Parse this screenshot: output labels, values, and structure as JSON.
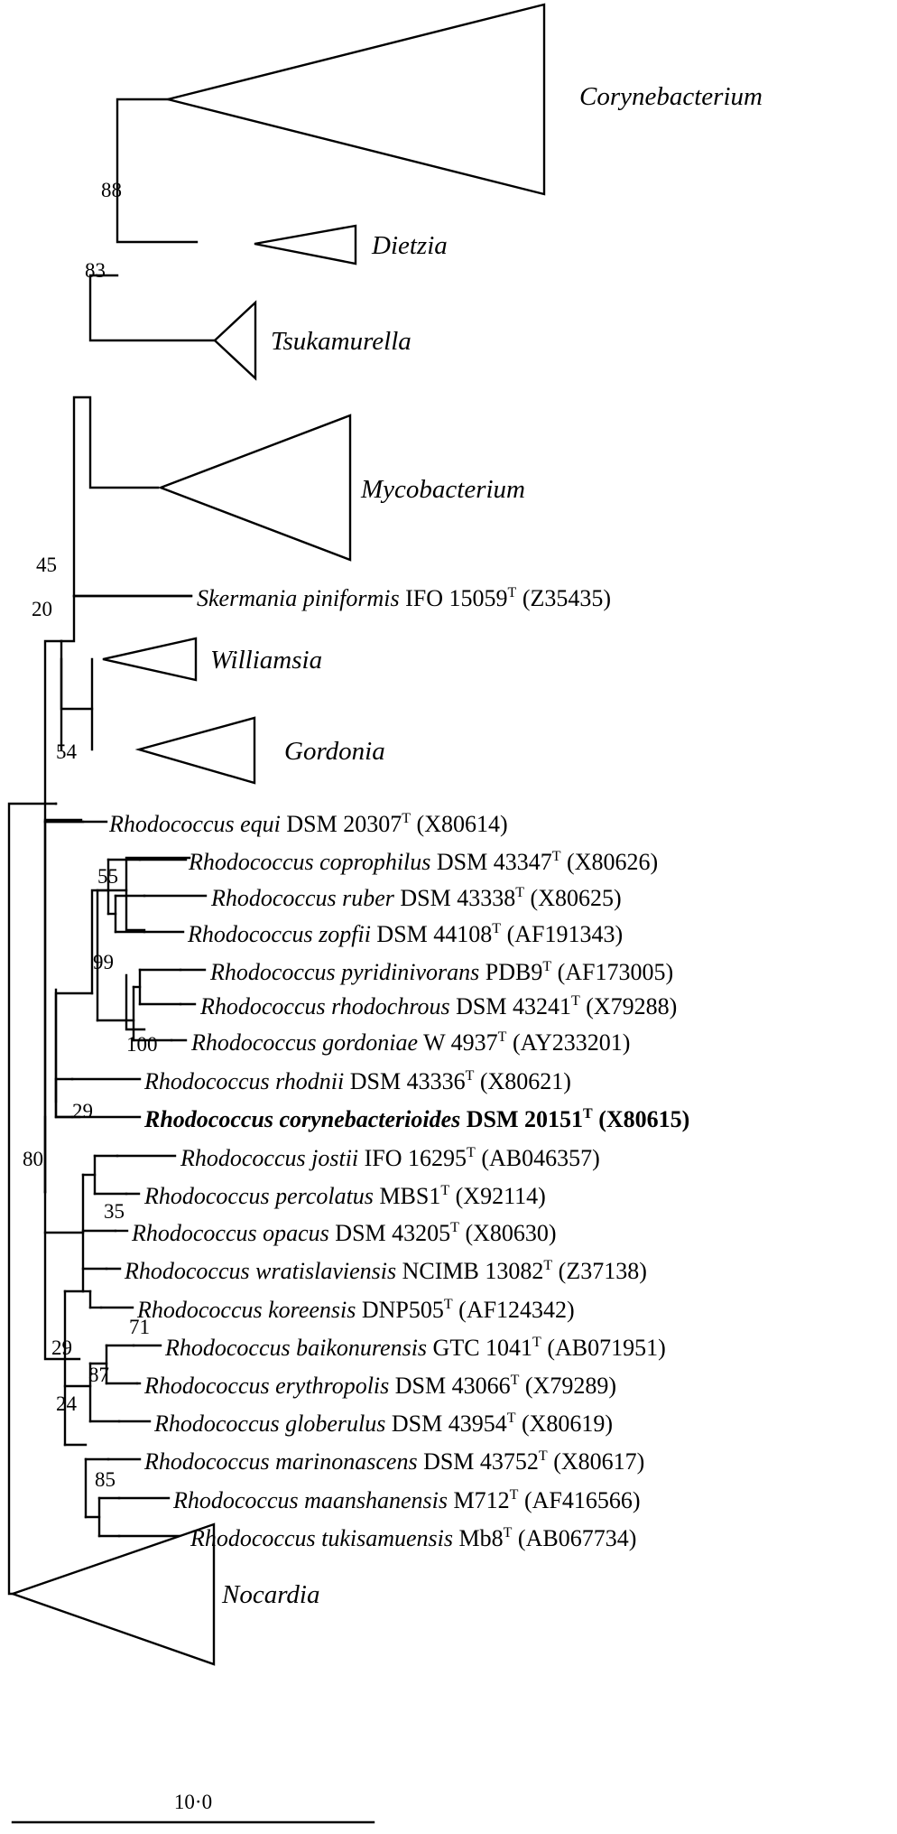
{
  "collapsed_clades": [
    {
      "label": "Corynebacterium"
    },
    {
      "label": "Dietzia"
    },
    {
      "label": "Tsukamurella"
    },
    {
      "label": "Mycobacterium"
    },
    {
      "label": "Williamsia"
    },
    {
      "label": "Gordonia"
    },
    {
      "label": "Nocardia"
    }
  ],
  "taxa": [
    {
      "genus": "Skermania",
      "species": "piniformis",
      "strain": "IFO 15059",
      "type_mark": "T",
      "accession": "(Z35435)"
    },
    {
      "genus": "Rhodococcus",
      "species": "equi",
      "strain": "DSM 20307",
      "type_mark": "T",
      "accession": "(X80614)"
    },
    {
      "genus": "Rhodococcus",
      "species": "coprophilus",
      "strain": "DSM 43347",
      "type_mark": "T",
      "accession": "(X80626)"
    },
    {
      "genus": "Rhodococcus",
      "species": "ruber",
      "strain": "DSM 43338",
      "type_mark": "T",
      "accession": "(X80625)"
    },
    {
      "genus": "Rhodococcus",
      "species": "zopfii",
      "strain": "DSM 44108",
      "type_mark": "T",
      "accession": "(AF191343)"
    },
    {
      "genus": "Rhodococcus",
      "species": "pyridinivorans",
      "strain": "PDB9",
      "type_mark": "T",
      "accession": "(AF173005)"
    },
    {
      "genus": "Rhodococcus",
      "species": "rhodochrous",
      "strain": "DSM 43241",
      "type_mark": "T",
      "accession": "(X79288)"
    },
    {
      "genus": "Rhodococcus",
      "species": "gordoniae",
      "strain": "W 4937",
      "type_mark": "T",
      "accession": "(AY233201)"
    },
    {
      "genus": "Rhodococcus",
      "species": "rhodnii",
      "strain": "DSM 43336",
      "type_mark": "T",
      "accession": "(X80621)"
    },
    {
      "genus": "Rhodococcus",
      "species": "corynebacterioides",
      "strain": "DSM 20151",
      "type_mark": "T",
      "accession": "(X80615)",
      "bold": true
    },
    {
      "genus": "Rhodococcus",
      "species": "jostii",
      "strain": "IFO 16295",
      "type_mark": "T",
      "accession": "(AB046357)"
    },
    {
      "genus": "Rhodococcus",
      "species": "percolatus",
      "strain": "MBS1",
      "type_mark": "T",
      "accession": "(X92114)"
    },
    {
      "genus": "Rhodococcus",
      "species": "opacus",
      "strain": "DSM 43205",
      "type_mark": "T",
      "accession": "(X80630)"
    },
    {
      "genus": "Rhodococcus",
      "species": "wratislaviensis",
      "strain": "NCIMB 13082",
      "type_mark": "T",
      "accession": "(Z37138)"
    },
    {
      "genus": "Rhodococcus",
      "species": "koreensis",
      "strain": "DNP505",
      "type_mark": "T",
      "accession": "(AF124342)"
    },
    {
      "genus": "Rhodococcus",
      "species": "baikonurensis",
      "strain": "GTC 1041",
      "type_mark": "T",
      "accession": "(AB071951)"
    },
    {
      "genus": "Rhodococcus",
      "species": "erythropolis",
      "strain": "DSM 43066",
      "type_mark": "T",
      "accession": "(X79289)"
    },
    {
      "genus": "Rhodococcus",
      "species": "globerulus",
      "strain": "DSM 43954",
      "type_mark": "T",
      "accession": "(X80619)"
    },
    {
      "genus": "Rhodococcus",
      "species": "marinonascens",
      "strain": "DSM 43752",
      "type_mark": "T",
      "accession": "(X80617)"
    },
    {
      "genus": "Rhodococcus",
      "species": "maanshanensis",
      "strain": "M712",
      "type_mark": "T",
      "accession": "(AF416566)"
    },
    {
      "genus": "Rhodococcus",
      "species": "tukisamuensis",
      "strain": "Mb8",
      "type_mark": "T",
      "accession": "(AB067734)"
    }
  ],
  "bootstrap_values": [
    "88",
    "83",
    "45",
    "20",
    "54",
    "55",
    "99",
    "100",
    "29",
    "80",
    "35",
    "71",
    "29",
    "87",
    "24",
    "85"
  ],
  "scale_bar": {
    "label": "10·0"
  }
}
